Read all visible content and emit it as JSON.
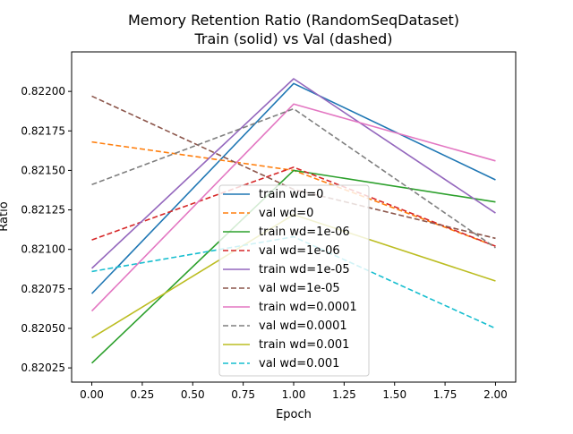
{
  "chart_data": {
    "type": "line",
    "title_line1": "Memory Retention Ratio (RandomSeqDataset)",
    "title_line2": "Train (solid) vs Val (dashed)",
    "xlabel": "Epoch",
    "ylabel": "Ratio",
    "xlim": [
      -0.1,
      2.1
    ],
    "ylim": [
      0.82016,
      0.82225
    ],
    "x_ticks": [
      0.0,
      0.25,
      0.5,
      0.75,
      1.0,
      1.25,
      1.5,
      1.75,
      2.0
    ],
    "x_tick_labels": [
      "0.00",
      "0.25",
      "0.50",
      "0.75",
      "1.00",
      "1.25",
      "1.50",
      "1.75",
      "2.00"
    ],
    "y_ticks": [
      0.82025,
      0.8205,
      0.82075,
      0.821,
      0.82125,
      0.8215,
      0.82175,
      0.822
    ],
    "y_tick_labels": [
      "0.82025",
      "0.82050",
      "0.82075",
      "0.82100",
      "0.82125",
      "0.82150",
      "0.82175",
      "0.82200"
    ],
    "grid": false,
    "legend_position": "lower-center",
    "x": [
      0,
      1,
      2
    ],
    "series": [
      {
        "name": "train wd=0",
        "color": "#1f77b4",
        "dashed": false,
        "values": [
          0.82072,
          0.82205,
          0.82144
        ]
      },
      {
        "name": "val wd=0",
        "color": "#ff7f0e",
        "dashed": true,
        "values": [
          0.82168,
          0.8215,
          0.82102
        ]
      },
      {
        "name": "train wd=1e-06",
        "color": "#2ca02c",
        "dashed": false,
        "values": [
          0.82028,
          0.8215,
          0.8213
        ]
      },
      {
        "name": "val wd=1e-06",
        "color": "#d62728",
        "dashed": true,
        "values": [
          0.82106,
          0.82152,
          0.82102
        ]
      },
      {
        "name": "train wd=1e-05",
        "color": "#9467bd",
        "dashed": false,
        "values": [
          0.82088,
          0.82208,
          0.82123
        ]
      },
      {
        "name": "val wd=1e-05",
        "color": "#8c564b",
        "dashed": true,
        "values": [
          0.82197,
          0.82138,
          0.82107
        ]
      },
      {
        "name": "train wd=0.0001",
        "color": "#e377c2",
        "dashed": false,
        "values": [
          0.82061,
          0.82192,
          0.82156
        ]
      },
      {
        "name": "val wd=0.0001",
        "color": "#7f7f7f",
        "dashed": true,
        "values": [
          0.82141,
          0.82189,
          0.82101
        ]
      },
      {
        "name": "train wd=0.001",
        "color": "#bcbd22",
        "dashed": false,
        "values": [
          0.82044,
          0.82122,
          0.8208
        ]
      },
      {
        "name": "val wd=0.001",
        "color": "#17becf",
        "dashed": true,
        "values": [
          0.82086,
          0.82108,
          0.8205
        ]
      }
    ]
  }
}
